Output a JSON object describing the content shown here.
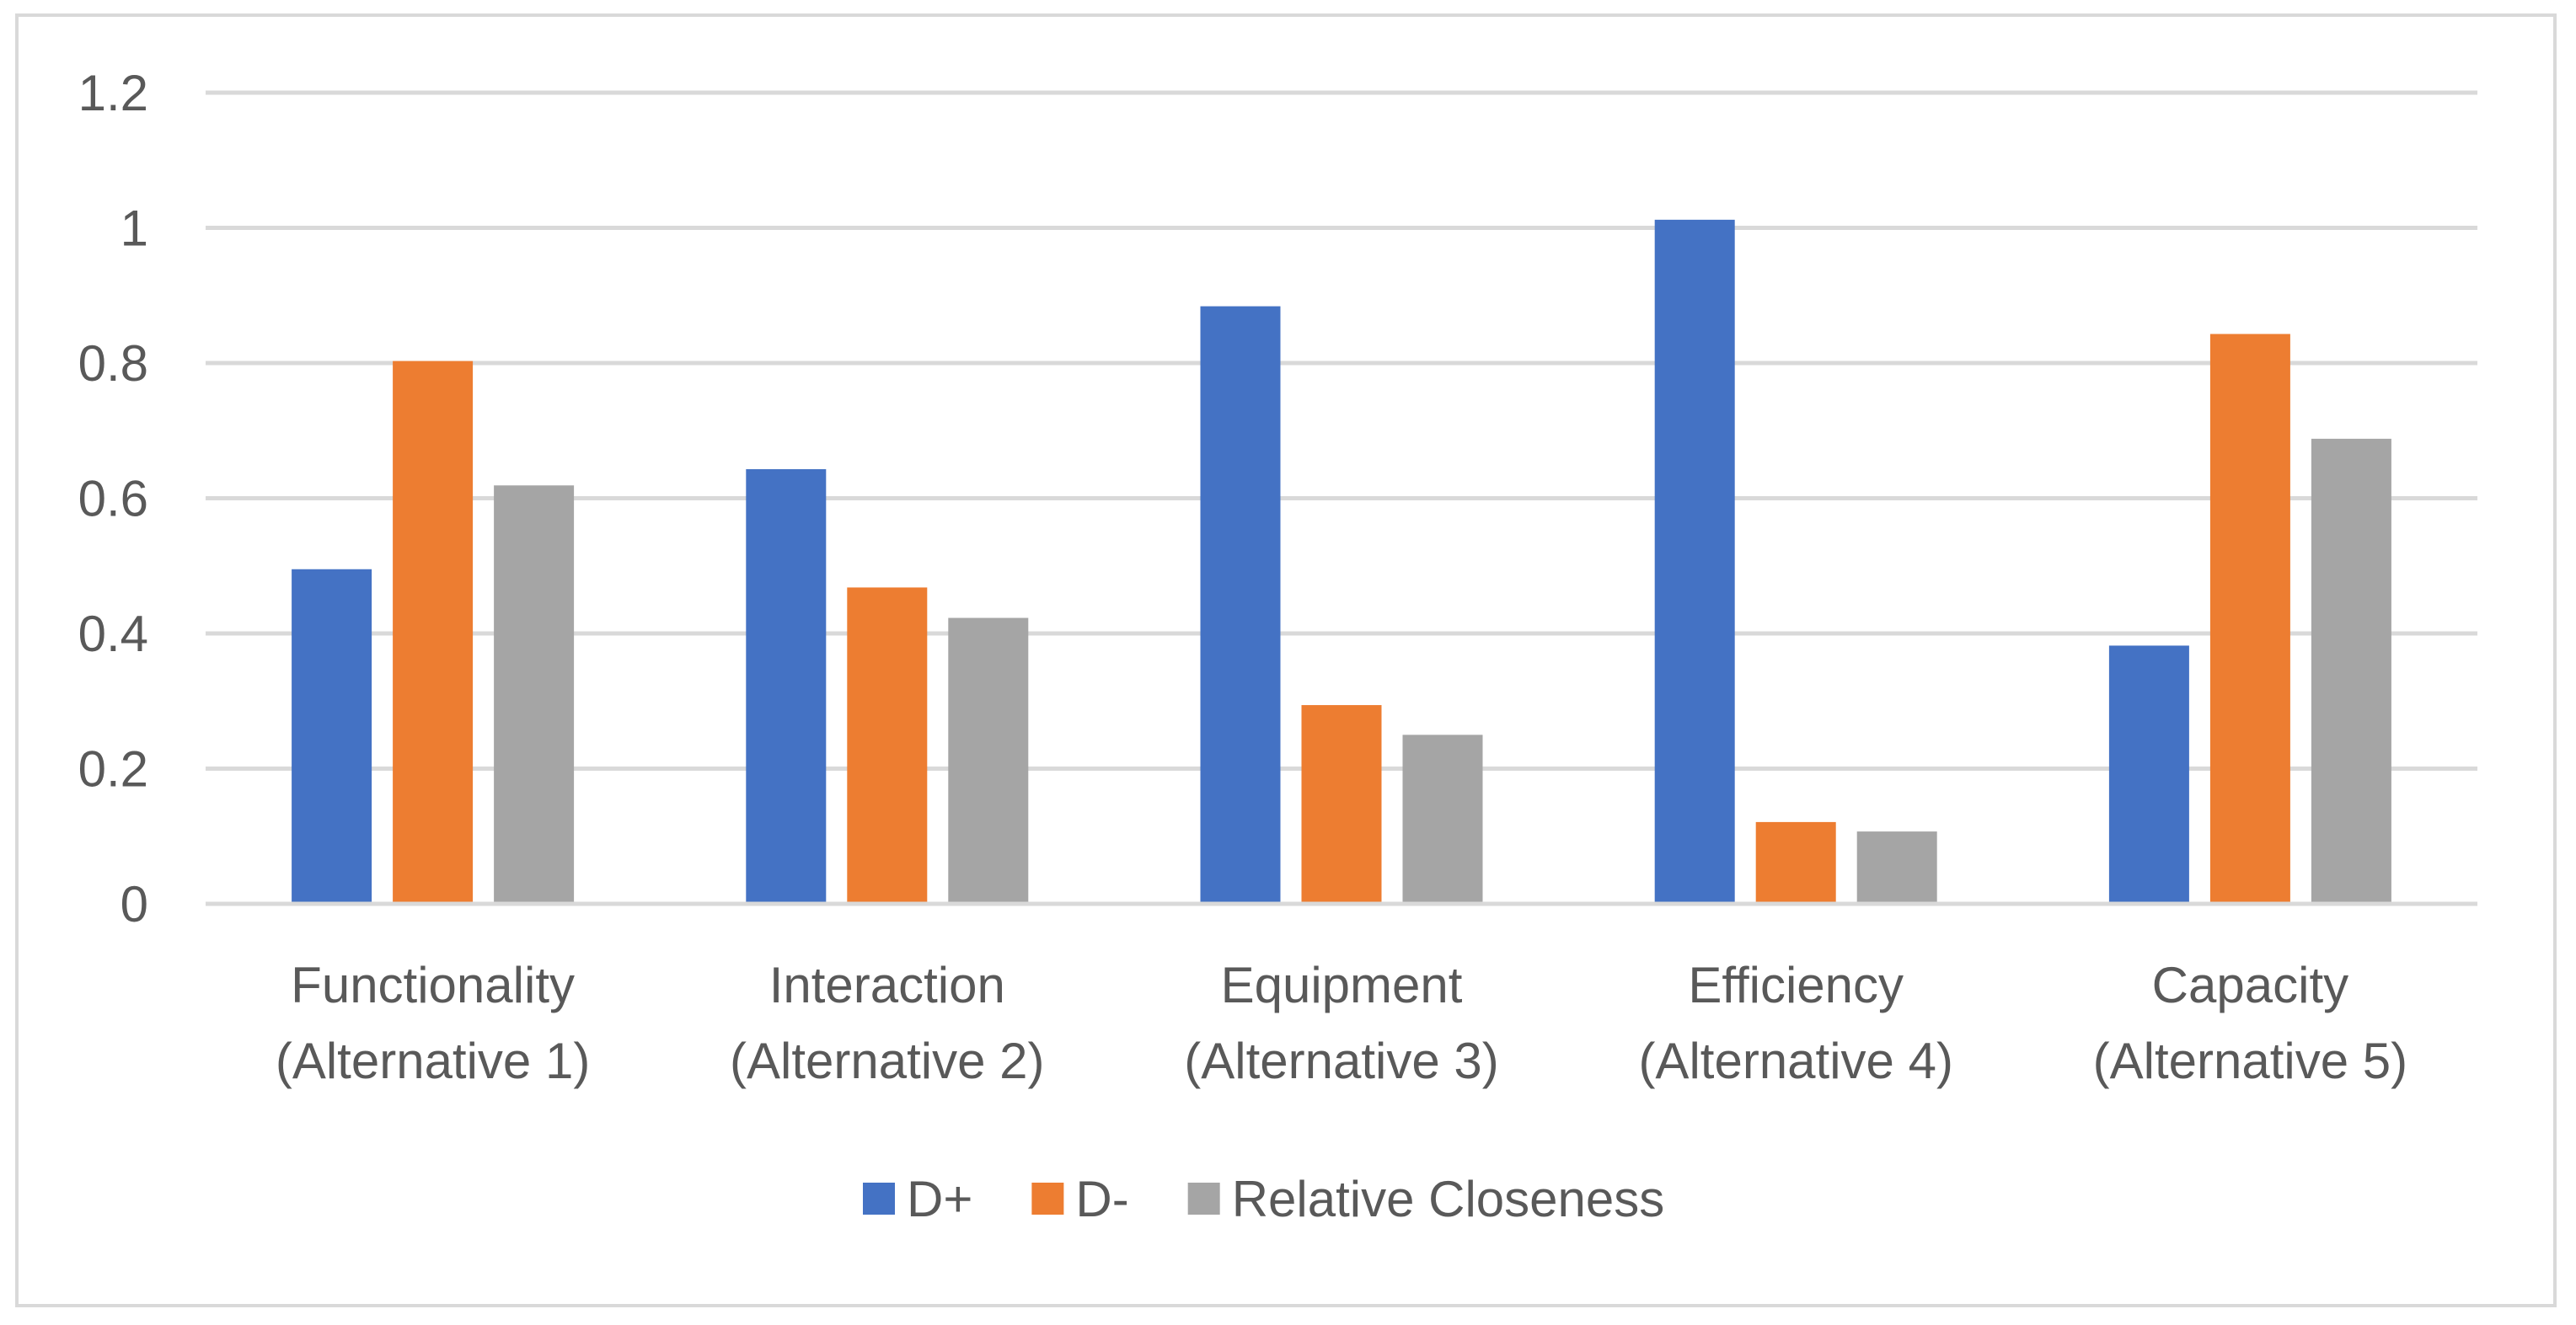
{
  "chart_data": {
    "type": "bar",
    "title": "",
    "xlabel": "",
    "ylabel": "",
    "ylim": [
      0,
      1.2
    ],
    "yticks": [
      "0",
      "0.2",
      "0.4",
      "0.6",
      "0.8",
      "1",
      "1.2"
    ],
    "ytick_values": [
      0,
      0.2,
      0.4,
      0.6,
      0.8,
      1.0,
      1.2
    ],
    "grid": true,
    "legend_position": "bottom",
    "categories": [
      [
        "Functionality",
        "(Alternative 1)"
      ],
      [
        "Interaction",
        "(Alternative 2)"
      ],
      [
        "Equipment",
        "(Alternative 3)"
      ],
      [
        "Efficiency",
        "(Alternative 4)"
      ],
      [
        "Capacity",
        "(Alternative 5)"
      ]
    ],
    "series": [
      {
        "name": "D+",
        "color": "#4472c4",
        "values": [
          0.495,
          0.643,
          0.884,
          1.012,
          0.382
        ]
      },
      {
        "name": "D-",
        "color": "#ed7d31",
        "values": [
          0.803,
          0.468,
          0.294,
          0.121,
          0.843
        ]
      },
      {
        "name": "Relative Closeness",
        "color": "#a5a5a5",
        "values": [
          0.619,
          0.423,
          0.25,
          0.107,
          0.688
        ]
      }
    ],
    "gridline_color": "#d9d9d9",
    "axis_color": "#d9d9d9",
    "text_color": "#595959"
  }
}
